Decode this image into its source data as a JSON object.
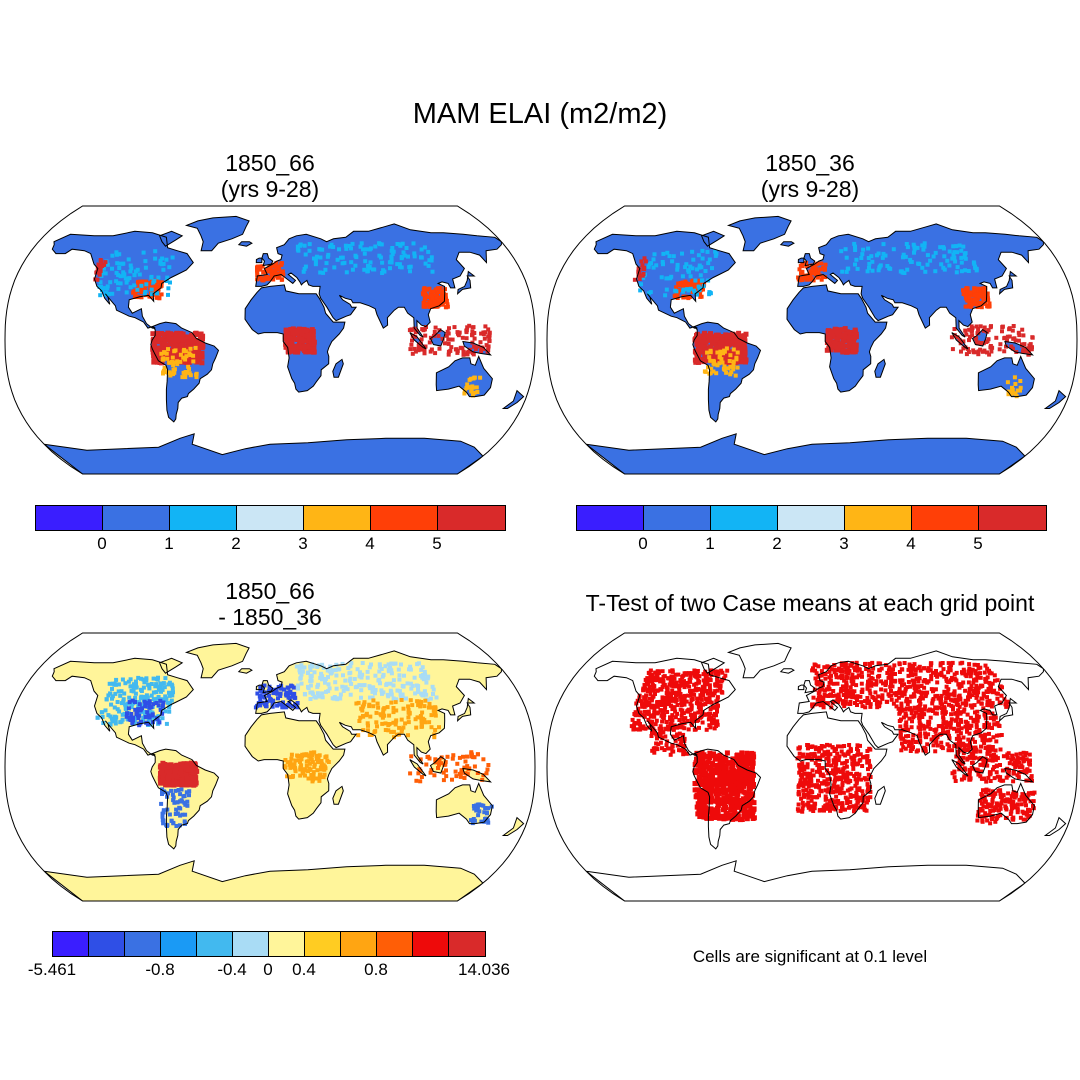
{
  "title": "MAM ELAI (m2/m2)",
  "panels": [
    {
      "id": "p1",
      "title_line1": "1850_66",
      "title_line2": "(yrs 9-28)"
    },
    {
      "id": "p2",
      "title_line1": "1850_36",
      "title_line2": "(yrs 9-28)"
    },
    {
      "id": "p3",
      "title_line1": "1850_66",
      "title_line2": "- 1850_36"
    },
    {
      "id": "p4",
      "title_line1": "T-Test of two Case means at each grid point"
    }
  ],
  "colorbar_abs": {
    "colors": [
      "#3a1eff",
      "#3a71e3",
      "#12b4f5",
      "#cbe6f5",
      "#ffb515",
      "#ff3f07",
      "#d92a2a"
    ],
    "labels": [
      "0",
      "1",
      "2",
      "3",
      "4",
      "5"
    ]
  },
  "colorbar_diff": {
    "colors": [
      "#3a1eff",
      "#2f4fe6",
      "#3a71e3",
      "#1a9af5",
      "#42b9ef",
      "#a9dcf5",
      "#fff59a",
      "#ffcc22",
      "#ffa512",
      "#ff5e06",
      "#ee0a0a",
      "#d92a2a"
    ],
    "labels": [
      "-5.461",
      "-0.8",
      "-0.4",
      "0",
      "0.4",
      "0.8",
      "14.036"
    ]
  },
  "significance_note": "Cells are significant at 0.1 level",
  "map_colors": {
    "coast": "#000000",
    "land_abs": "#3a71e3",
    "land_diff": "#fff59a",
    "sig": "#ee0a0a",
    "ocean": "#ffffff"
  }
}
